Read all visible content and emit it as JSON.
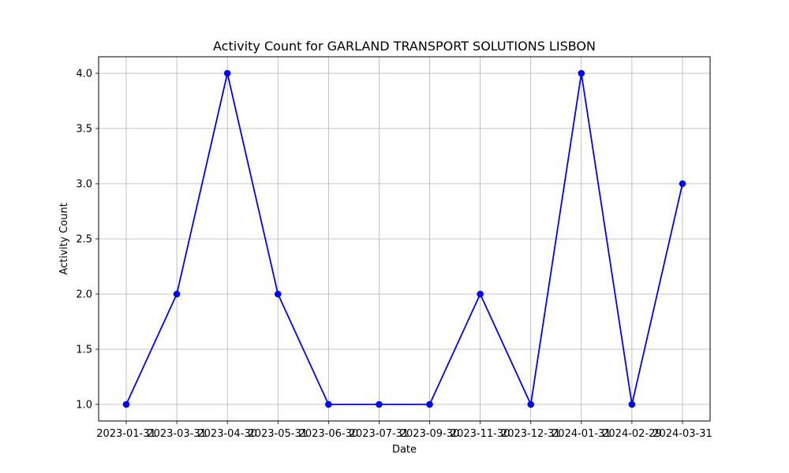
{
  "chart_data": {
    "type": "line",
    "title": "Activity Count for GARLAND TRANSPORT SOLUTIONS LISBON",
    "xlabel": "Date",
    "ylabel": "Activity Count",
    "categories": [
      "2023-01-31",
      "2023-03-31",
      "2023-04-30",
      "2023-05-31",
      "2023-06-30",
      "2023-07-31",
      "2023-09-30",
      "2023-11-30",
      "2023-12-31",
      "2024-01-31",
      "2024-02-29",
      "2024-03-31"
    ],
    "series": [
      {
        "values": [
          1,
          2,
          4,
          2,
          1,
          1,
          1,
          2,
          1,
          4,
          1,
          3
        ],
        "color": "#0000ff",
        "marker": "circle"
      }
    ],
    "ylim": [
      0.85,
      4.15
    ],
    "yticks": [
      "1.0",
      "1.5",
      "2.0",
      "2.5",
      "3.0",
      "3.5",
      "4.0"
    ],
    "grid": true,
    "legend": "none"
  }
}
